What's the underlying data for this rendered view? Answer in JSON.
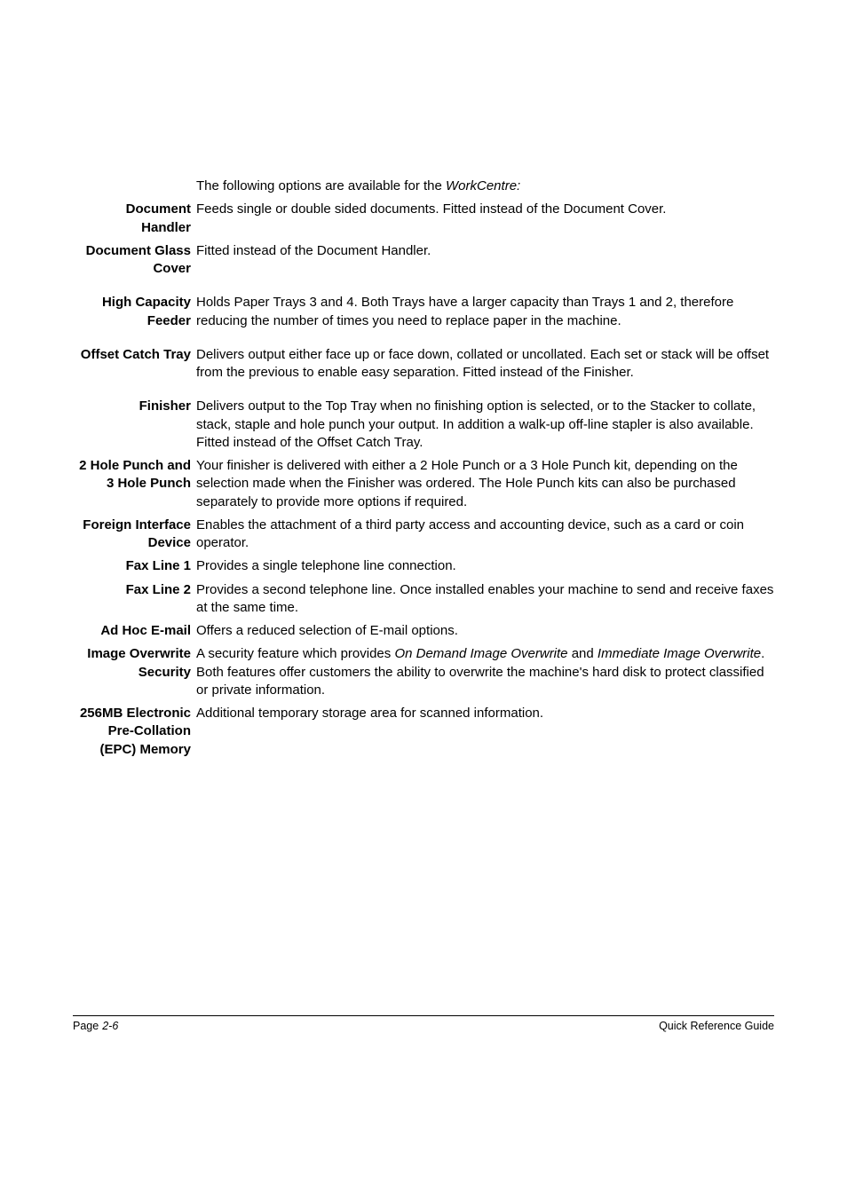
{
  "intro_prefix": "The following options are available for the ",
  "intro_product": "WorkCentre:",
  "rows": [
    {
      "term": "Document Handler",
      "desc": "Feeds single or double sided documents. Fitted instead of the Document Cover."
    },
    {
      "term": "Document Glass Cover",
      "desc": "Fitted instead of the Document Handler."
    },
    {
      "term": "High Capacity Feeder",
      "desc": "Holds Paper Trays 3 and 4. Both Trays have a larger capacity than Trays 1 and 2, therefore reducing the number of times you need to replace paper in the machine."
    },
    {
      "term": "Offset Catch Tray",
      "desc": "Delivers output either face up or face down, collated or uncollated. Each set or stack will be offset from the previous to enable easy separation. Fitted instead of the Finisher."
    },
    {
      "term": "Finisher",
      "desc": "Delivers output to the Top Tray when no finishing option is selected, or to the Stacker to collate, stack, staple and hole punch your output. In addition a walk-up off-line stapler is also available. Fitted instead of the Offset Catch Tray."
    },
    {
      "term": "2 Hole Punch and 3 Hole Punch",
      "desc": "Your finisher is delivered with either a 2 Hole Punch or a 3 Hole Punch kit, depending on the selection made when the Finisher was ordered. The Hole Punch kits can also be purchased separately to provide more options if required."
    },
    {
      "term": "Foreign Interface Device",
      "desc": "Enables the attachment of a third party access and accounting device, such as a card or coin operator."
    },
    {
      "term": "Fax Line 1",
      "desc": "Provides a single telephone line connection."
    },
    {
      "term": "Fax Line 2",
      "desc": "Provides a second telephone line. Once installed enables your machine to send and receive faxes at the same time."
    },
    {
      "term": "Ad Hoc E-mail",
      "desc": "Offers a reduced selection of E-mail options."
    },
    {
      "term": "256MB Electronic Pre-Collation (EPC) Memory",
      "desc": "Additional temporary storage area for scanned information."
    }
  ],
  "image_overwrite": {
    "term": "Image Overwrite Security",
    "pre": "A security feature which provides ",
    "i1": "On Demand Image Overwrite",
    "mid": " and ",
    "i2": "Immediate Image Overwrite",
    "post": ". Both features offer customers the ability to overwrite the machine's hard disk to protect classified or private information."
  },
  "footer": {
    "page_label": "Page",
    "page_number": "2-6",
    "right": "Quick Reference Guide"
  },
  "spacing": {
    "extra_margin_indices": [
      1,
      2,
      3
    ]
  }
}
